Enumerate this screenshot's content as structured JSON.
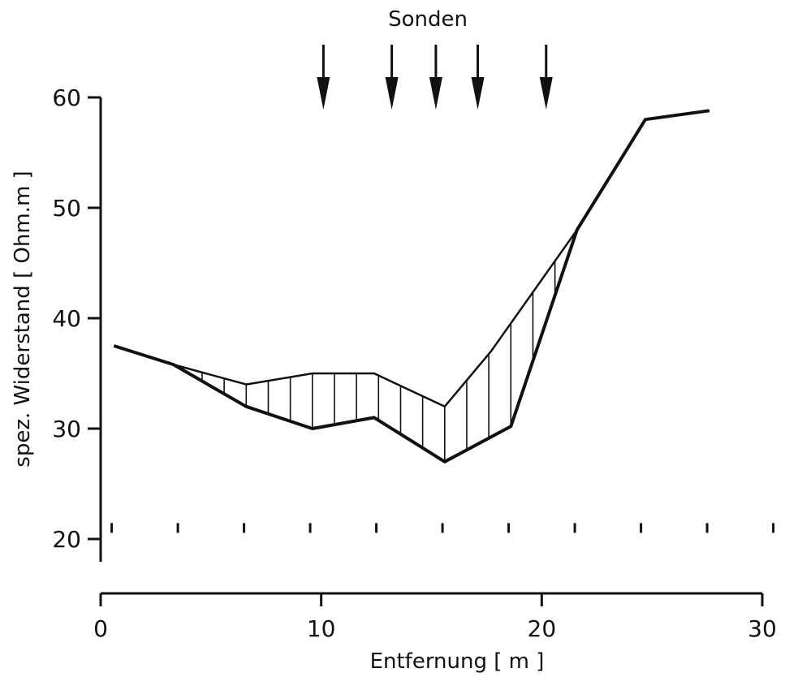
{
  "chart_data": {
    "type": "line",
    "title": "",
    "top_label": "Sonden",
    "xlabel": "Entfernung   [ m ]",
    "ylabel": "spez. Widerstand  [ Ohm.m ]",
    "xlim": [
      0,
      30
    ],
    "ylim": [
      20,
      60
    ],
    "x_ticks": [
      0,
      10,
      20,
      30
    ],
    "y_ticks": [
      20,
      30,
      40,
      50,
      60
    ],
    "x_tick_labels": [
      "0",
      "10",
      "20",
      "30"
    ],
    "y_tick_labels": [
      "20",
      "30",
      "40",
      "50",
      "60"
    ],
    "minor_marks_x": [
      0.5,
      3.5,
      6.5,
      9.5,
      12.5,
      15.5,
      18.5,
      21.5,
      24.5,
      27.5,
      30.5
    ],
    "probe_x": [
      10.1,
      13.2,
      15.2,
      17.1,
      20.2
    ],
    "series": [
      {
        "values_x": [
          0.6,
          3.3,
          6.6,
          9.6,
          12.4,
          15.6,
          17.7,
          21.6,
          24.7,
          27.6
        ],
        "values_y": [
          37.5,
          35.8,
          34.0,
          35.0,
          35.0,
          32.0,
          37.0,
          48.0,
          58.0,
          58.8
        ]
      },
      {
        "values_x": [
          0.6,
          3.3,
          6.6,
          9.6,
          12.4,
          15.6,
          18.6,
          21.6,
          24.7,
          27.6
        ],
        "values_y": [
          37.5,
          35.8,
          32.0,
          30.0,
          31.0,
          27.0,
          30.2,
          48.0,
          58.0,
          58.8
        ]
      }
    ],
    "hatched_area_between_series": true,
    "grid": false,
    "legend": "none"
  }
}
